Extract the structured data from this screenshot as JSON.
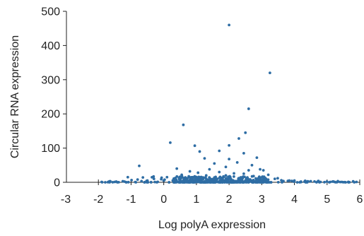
{
  "chart_data": {
    "type": "scatter",
    "title": "",
    "xlabel": "Log polyA expression",
    "ylabel": "Circular RNA expression",
    "xlim": [
      -3,
      6
    ],
    "ylim": [
      0,
      500
    ],
    "x_ticks": [
      "-3",
      "-2",
      "-1",
      "0",
      "1",
      "2",
      "3",
      "4",
      "5",
      "6"
    ],
    "y_ticks": [
      "0",
      "100",
      "200",
      "300",
      "400",
      "500"
    ],
    "grid": false,
    "legend": "none",
    "marker_color": "#2e6da4",
    "series": [
      {
        "points": [
          [
            2.0,
            460
          ],
          [
            3.25,
            320
          ],
          [
            2.6,
            215
          ],
          [
            0.6,
            168
          ],
          [
            2.5,
            145
          ],
          [
            0.2,
            116
          ],
          [
            2.0,
            108
          ],
          [
            0.95,
            107
          ],
          [
            2.3,
            128
          ],
          [
            1.7,
            92
          ],
          [
            1.1,
            90
          ],
          [
            2.45,
            85
          ],
          [
            1.25,
            70
          ],
          [
            2.85,
            72
          ],
          [
            2.0,
            68
          ],
          [
            -0.75,
            48
          ],
          [
            1.55,
            55
          ],
          [
            2.25,
            58
          ],
          [
            2.7,
            50
          ],
          [
            1.9,
            45
          ],
          [
            2.95,
            38
          ],
          [
            0.4,
            40
          ],
          [
            1.4,
            38
          ],
          [
            2.6,
            35
          ],
          [
            3.05,
            35
          ],
          [
            0.8,
            32
          ],
          [
            1.05,
            28
          ],
          [
            1.7,
            30
          ],
          [
            2.15,
            26
          ],
          [
            2.45,
            25
          ],
          [
            3.2,
            22
          ],
          [
            0.55,
            22
          ],
          [
            1.3,
            20
          ],
          [
            1.9,
            20
          ],
          [
            2.75,
            18
          ],
          [
            -1.1,
            15
          ],
          [
            0.1,
            15
          ],
          [
            0.95,
            14
          ],
          [
            1.55,
            14
          ],
          [
            2.3,
            12
          ],
          [
            2.9,
            12
          ],
          [
            3.4,
            10
          ],
          [
            -0.3,
            10
          ],
          [
            0.35,
            12
          ],
          [
            1.2,
            10
          ],
          [
            1.8,
            9
          ],
          [
            2.55,
            9
          ],
          [
            3.1,
            8
          ],
          [
            -0.8,
            8
          ],
          [
            0.7,
            8
          ],
          [
            3.6,
            6
          ],
          [
            4.0,
            5
          ],
          [
            3.8,
            4
          ],
          [
            4.5,
            3
          ],
          [
            4.2,
            2
          ],
          [
            5.1,
            1
          ],
          [
            5.45,
            1
          ],
          [
            5.9,
            1
          ],
          [
            4.8,
            1
          ],
          [
            -1.7,
            1
          ],
          [
            -1.5,
            1
          ],
          [
            -1.9,
            1
          ],
          [
            -1.2,
            2
          ],
          [
            -0.5,
            5
          ],
          [
            0.0,
            5
          ]
        ],
        "dense_band": {
          "x_from": -1.9,
          "x_to": 5.9,
          "x_core": [
            0.3,
            3.2
          ],
          "y_max": 18,
          "count": 520,
          "seed": 7
        }
      }
    ]
  }
}
